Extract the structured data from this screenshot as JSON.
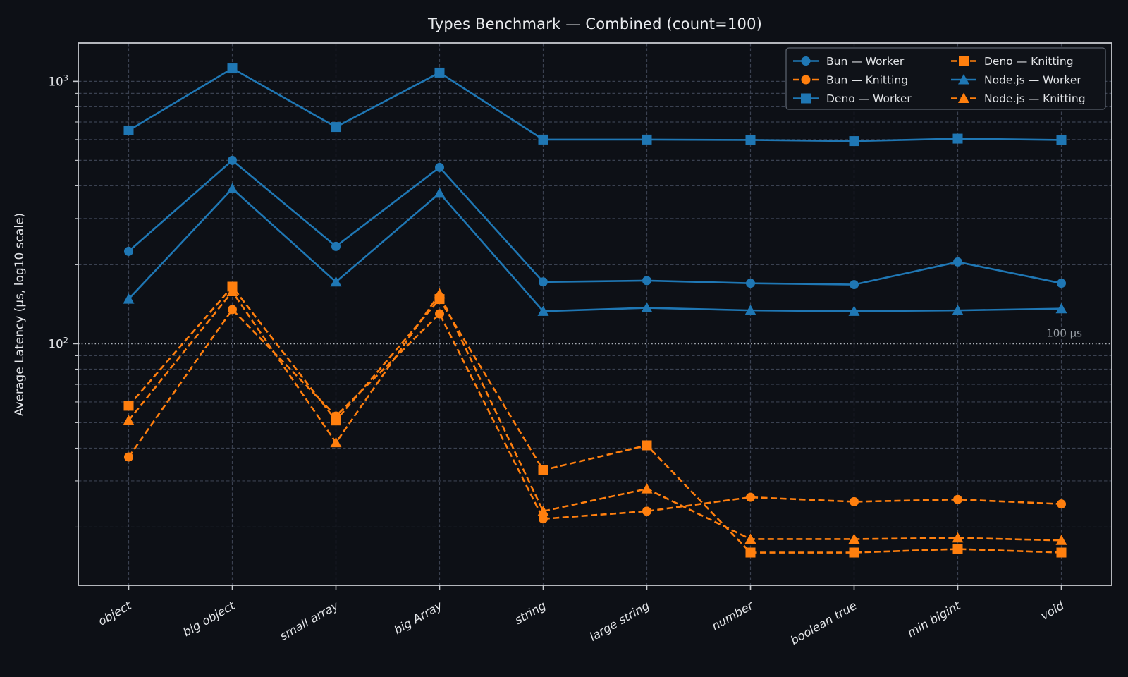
{
  "title": "Types Benchmark — Combined (count=100)",
  "y_axis_label": "Average Latency (µs, log10 scale)",
  "colors": {
    "background": "#0d1016",
    "blue": "#1f77b4",
    "orange": "#ff7f0e",
    "grid": "#3a4150",
    "spine": "#c6c9ce",
    "tick_label": "#e3e5e8",
    "legend_border": "#59606b",
    "refline": "#aeb4bb",
    "annotation": "#9ba1a8"
  },
  "y_ticks": [
    {
      "value": 1000,
      "base": "10",
      "exp": "3"
    },
    {
      "value": 100,
      "base": "10",
      "exp": "2"
    }
  ],
  "chart_data": {
    "type": "line",
    "yscale": "log10",
    "ylim": [
      12,
      1400
    ],
    "grid": true,
    "legend_position": "upper right",
    "categories": [
      "object",
      "big object",
      "small array",
      "big Array",
      "string",
      "large string",
      "number",
      "boolean true",
      "min bigint",
      "void"
    ],
    "refline": {
      "value": 100,
      "label": "100 µs"
    },
    "series": [
      {
        "name": "Bun — Worker",
        "color": "#1f77b4",
        "marker": "circle",
        "line": "solid",
        "values": [
          225,
          500,
          235,
          470,
          172,
          174,
          170,
          168,
          205,
          170
        ]
      },
      {
        "name": "Bun — Knitting",
        "color": "#ff7f0e",
        "marker": "circle",
        "line": "dashed",
        "values": [
          37,
          135,
          53,
          130,
          21.5,
          23,
          26,
          25,
          25.5,
          24.5
        ]
      },
      {
        "name": "Deno — Worker",
        "color": "#1f77b4",
        "marker": "square",
        "line": "solid",
        "values": [
          650,
          1120,
          670,
          1080,
          600,
          600,
          598,
          592,
          605,
          598
        ]
      },
      {
        "name": "Deno — Knitting",
        "color": "#ff7f0e",
        "marker": "square",
        "line": "dashed",
        "values": [
          58,
          165,
          51,
          148,
          33,
          41,
          16,
          16,
          16.5,
          16
        ]
      },
      {
        "name": "Node.js — Worker",
        "color": "#1f77b4",
        "marker": "triangle",
        "line": "solid",
        "values": [
          148,
          390,
          172,
          375,
          133,
          137,
          134,
          133,
          134,
          136
        ]
      },
      {
        "name": "Node.js — Knitting",
        "color": "#ff7f0e",
        "marker": "triangle",
        "line": "dashed",
        "values": [
          51,
          158,
          42,
          155,
          23,
          28,
          18,
          18,
          18.2,
          17.8
        ]
      }
    ]
  }
}
